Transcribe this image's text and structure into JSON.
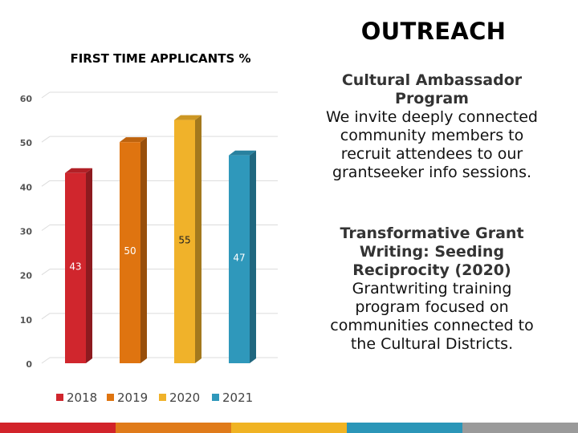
{
  "slide": {
    "title": "OUTREACH",
    "blocks": [
      {
        "heading": "Cultural Ambassador Program",
        "body": "We invite deeply connected community members to recruit attendees to our grantseeker info sessions."
      },
      {
        "heading": "Transformative Grant Writing: Seeding Reciprocity (2020)",
        "body": "Grantwriting training program focused on communities connected to the Cultural Districts."
      }
    ],
    "footer_colors": [
      "#d2232a",
      "#e07b1a",
      "#f0b323",
      "#2b96b8",
      "#9a9a9a"
    ]
  },
  "chart_data": {
    "type": "bar",
    "title": "FIRST TIME APPLICANTS %",
    "categories": [
      "2018",
      "2019",
      "2020",
      "2021"
    ],
    "values": [
      43,
      50,
      55,
      47
    ],
    "colors": [
      "#d0262d",
      "#df7410",
      "#f0b22a",
      "#2f98bb"
    ],
    "ylim": [
      0,
      60
    ],
    "yticks": [
      0,
      10,
      20,
      30,
      40,
      50,
      60
    ],
    "grid": true,
    "legend": "bottom",
    "style": "3d"
  }
}
